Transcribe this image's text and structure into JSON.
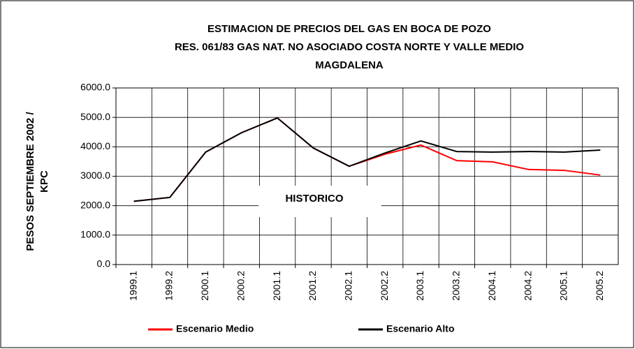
{
  "chart_data": {
    "type": "line",
    "title": [
      "ESTIMACION DE PRECIOS DEL GAS EN BOCA DE POZO",
      "RES. 061/83 GAS NAT. NO ASOCIADO COSTA NORTE Y VALLE MEDIO",
      "MAGDALENA"
    ],
    "y_label": [
      "PESOS SEPTIEMBRE 2002 /",
      "KPC"
    ],
    "annotation": "HISTORICO",
    "categories": [
      "1999.1",
      "1999.2",
      "2000.1",
      "2000.2",
      "2001.1",
      "2001.2",
      "2002.1",
      "2002.2",
      "2003.1",
      "2003.2",
      "2004.1",
      "2004.2",
      "2005.1",
      "2005.2"
    ],
    "series": [
      {
        "name": "Escenario Medio",
        "color": "#ff0000",
        "values": [
          2150,
          2280,
          3820,
          4480,
          4980,
          3960,
          3340,
          3750,
          4060,
          3530,
          3490,
          3230,
          3200,
          3040
        ]
      },
      {
        "name": "Escenario Alto",
        "color": "#000000",
        "values": [
          2150,
          2280,
          3820,
          4480,
          4980,
          3960,
          3340,
          3790,
          4200,
          3840,
          3820,
          3840,
          3820,
          3890
        ]
      }
    ],
    "ylim": [
      0,
      6000
    ],
    "yticks": [
      {
        "value": 0,
        "label": "0.0"
      },
      {
        "value": 1000,
        "label": "1000.0"
      },
      {
        "value": 2000,
        "label": "2000.0"
      },
      {
        "value": 3000,
        "label": "3000.0"
      },
      {
        "value": 4000,
        "label": "4000.0"
      },
      {
        "value": 5000,
        "label": "5000.0"
      },
      {
        "value": 6000,
        "label": "6000.0"
      }
    ],
    "grid": true,
    "legend": "bottom"
  }
}
